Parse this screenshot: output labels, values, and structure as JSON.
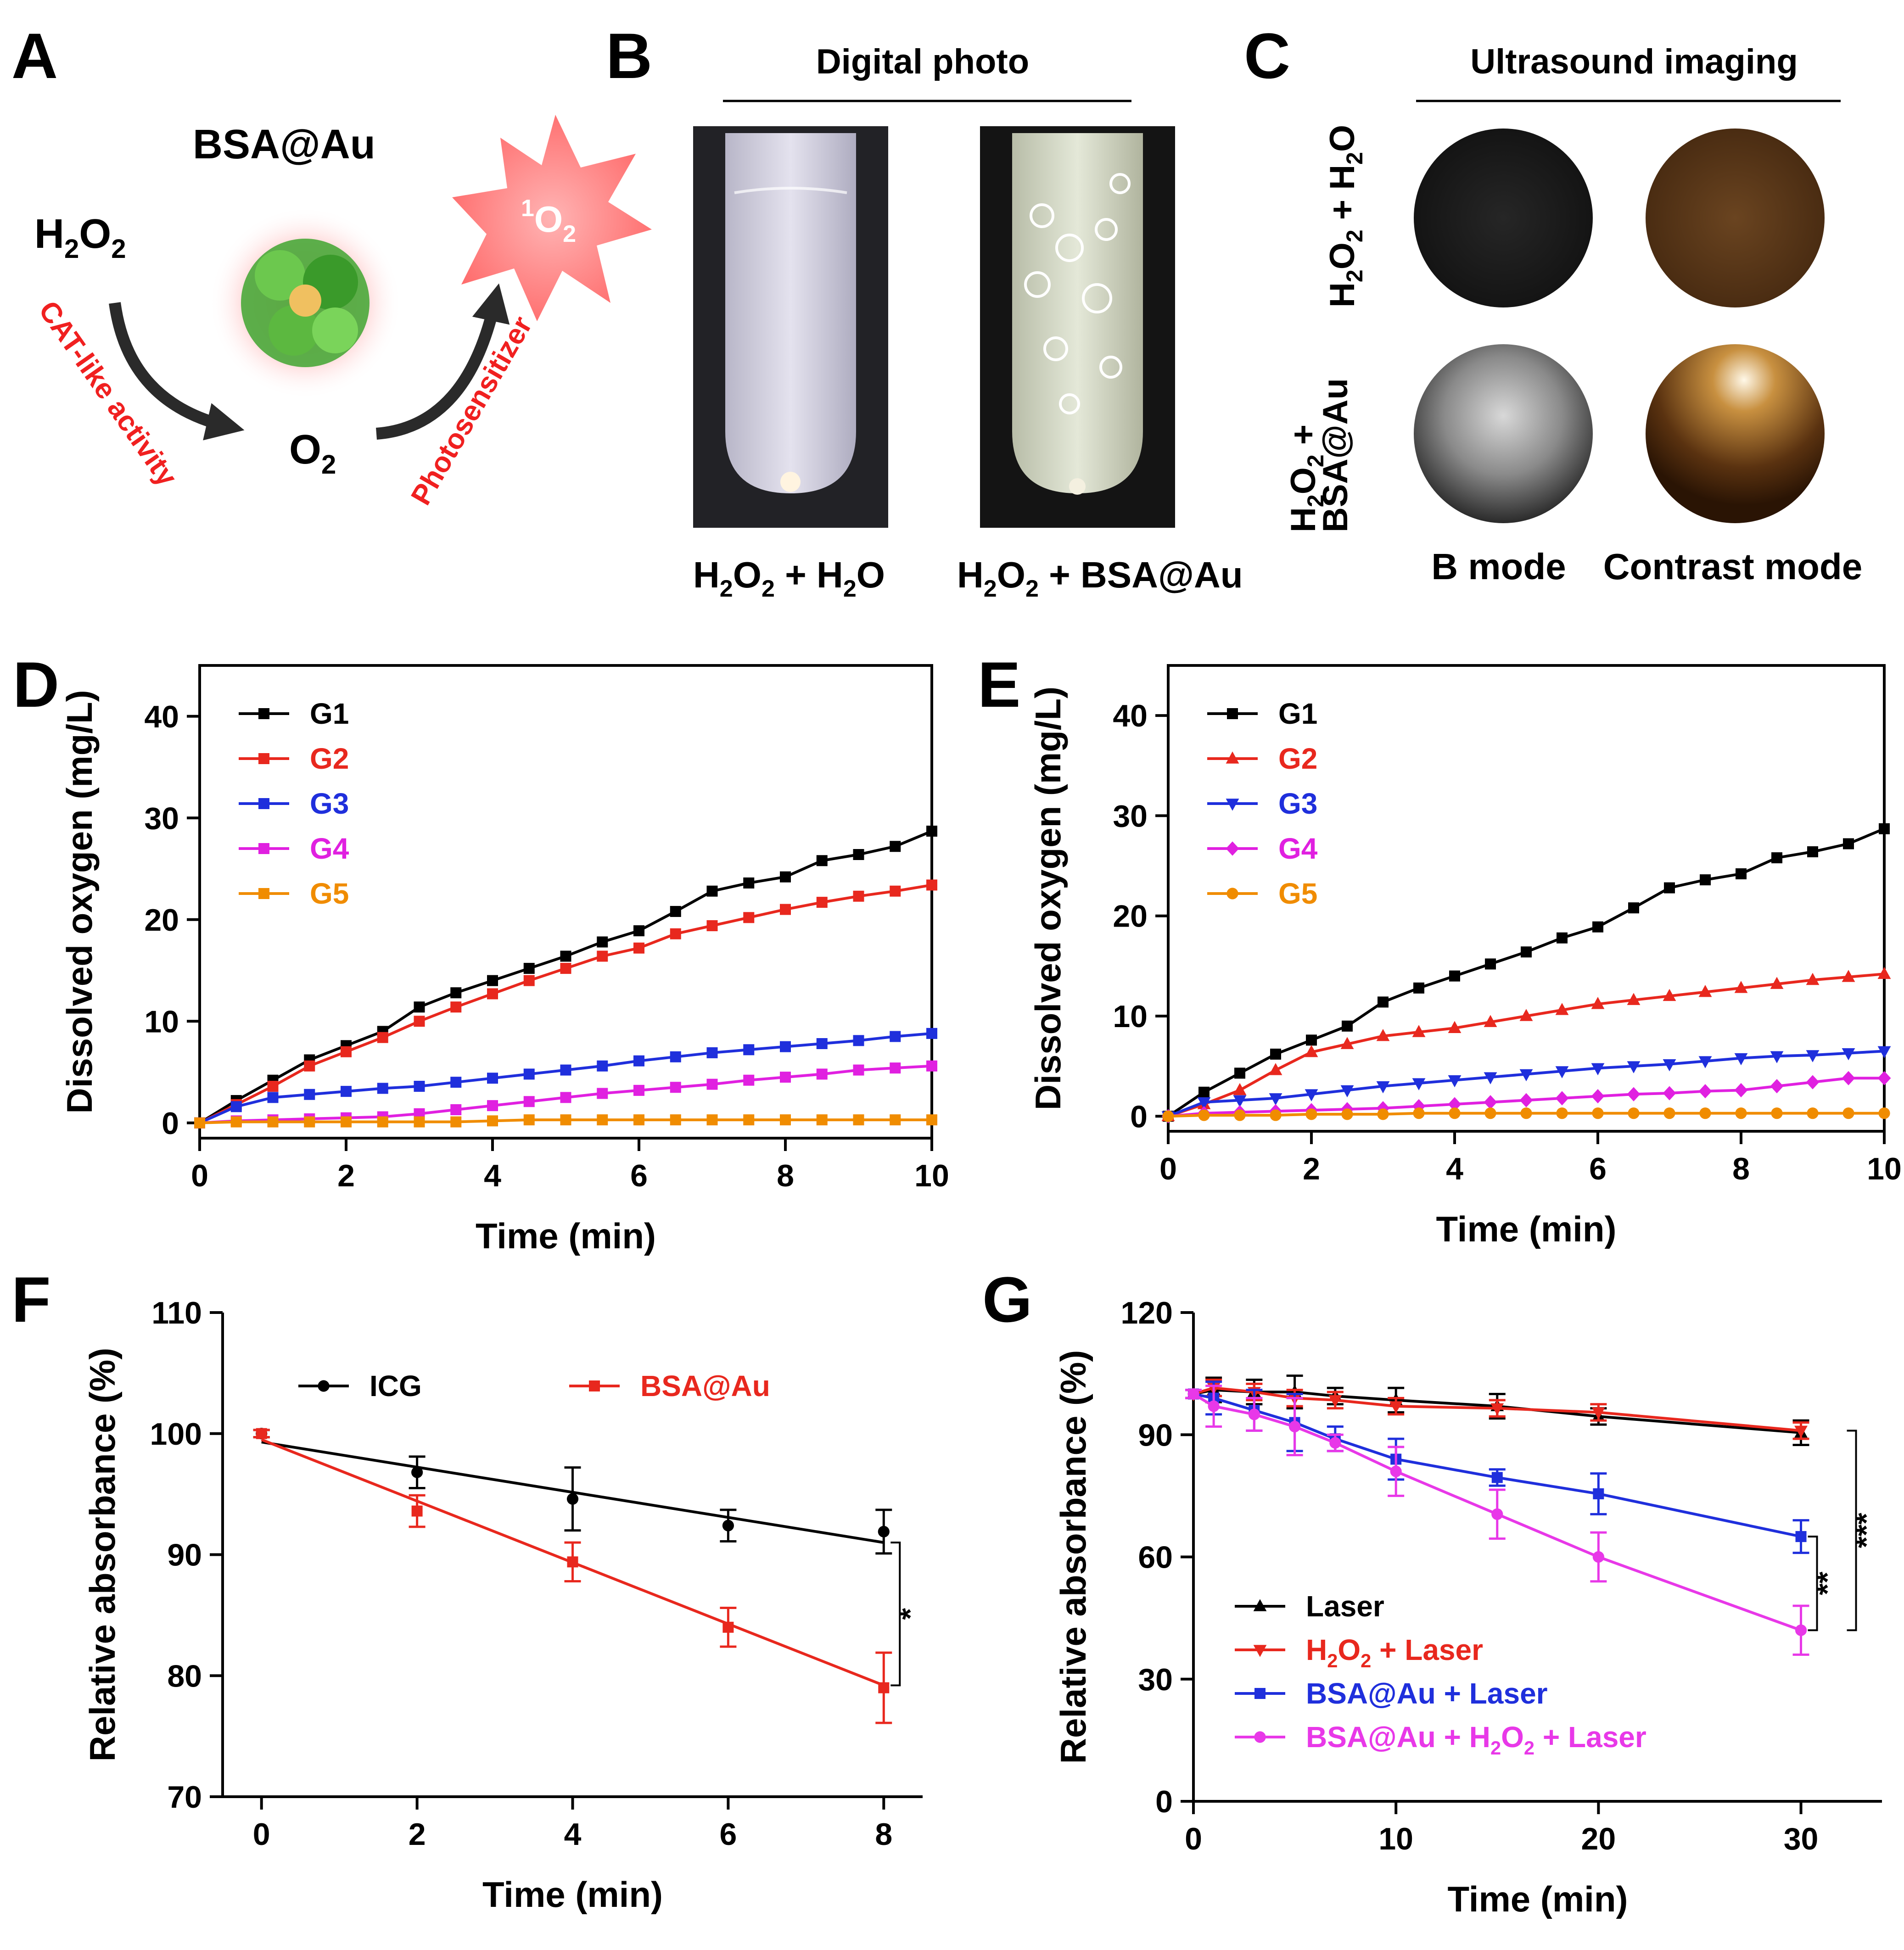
{
  "panels": {
    "A": {
      "label": "A",
      "nanozyme": "BSA@Au",
      "substrate": "H2O2",
      "product": "O2",
      "singlet": "1O2",
      "cat_label": "CAT-like activity",
      "ps_label": "Photosensitizer"
    },
    "B": {
      "label": "B",
      "title": "Digital photo",
      "captions": [
        "H2O2 + H2O",
        "H2O2 + BSA@Au"
      ]
    },
    "C": {
      "label": "C",
      "title": "Ultrasound imaging",
      "row_labels": [
        "H2O2 + H2O",
        "H2O2 + BSA@Au"
      ],
      "col_labels": [
        "B mode",
        "Contrast mode"
      ]
    }
  },
  "chart_data": [
    {
      "id": "D",
      "panel_label": "D",
      "type": "line",
      "xlabel": "Time (min)",
      "ylabel": "Dissolved oxygen (mg/L)",
      "xlim": [
        0,
        10
      ],
      "ylim": [
        -1.5,
        45
      ],
      "xticks": [
        0,
        2,
        4,
        6,
        8,
        10
      ],
      "yticks": [
        0,
        10,
        20,
        30,
        40
      ],
      "legend_position": "top-left",
      "x": [
        0,
        0.5,
        1,
        1.5,
        2,
        2.5,
        3,
        3.5,
        4,
        4.5,
        5,
        5.5,
        6,
        6.5,
        7,
        7.5,
        8,
        8.5,
        9,
        9.5,
        10
      ],
      "series": [
        {
          "name": "G1",
          "color": "#000000",
          "marker": "square",
          "values": [
            0,
            2.2,
            4.2,
            6.2,
            7.6,
            9.0,
            11.4,
            12.8,
            14.0,
            15.2,
            16.4,
            17.8,
            18.9,
            20.8,
            22.8,
            23.6,
            24.2,
            25.8,
            26.4,
            27.2,
            28.7
          ]
        },
        {
          "name": "G2",
          "color": "#e8281e",
          "marker": "square",
          "values": [
            0,
            1.8,
            3.6,
            5.6,
            7.0,
            8.4,
            10.0,
            11.4,
            12.7,
            14.0,
            15.2,
            16.4,
            17.2,
            18.6,
            19.4,
            20.2,
            21.0,
            21.7,
            22.3,
            22.8,
            23.4
          ]
        },
        {
          "name": "G3",
          "color": "#1f2fdc",
          "marker": "square",
          "values": [
            0,
            1.6,
            2.5,
            2.8,
            3.1,
            3.4,
            3.6,
            4.0,
            4.4,
            4.8,
            5.2,
            5.6,
            6.1,
            6.5,
            6.9,
            7.2,
            7.5,
            7.8,
            8.1,
            8.5,
            8.8
          ]
        },
        {
          "name": "G4",
          "color": "#e020e0",
          "marker": "square",
          "values": [
            0,
            0.2,
            0.3,
            0.4,
            0.5,
            0.6,
            0.9,
            1.3,
            1.7,
            2.1,
            2.5,
            2.9,
            3.2,
            3.5,
            3.8,
            4.2,
            4.5,
            4.8,
            5.2,
            5.4,
            5.6
          ]
        },
        {
          "name": "G5",
          "color": "#f08c00",
          "marker": "square",
          "values": [
            0,
            0.1,
            0.1,
            0.1,
            0.1,
            0.1,
            0.1,
            0.1,
            0.2,
            0.3,
            0.3,
            0.3,
            0.3,
            0.3,
            0.3,
            0.3,
            0.3,
            0.3,
            0.3,
            0.3,
            0.3
          ]
        }
      ]
    },
    {
      "id": "E",
      "panel_label": "E",
      "type": "line",
      "xlabel": "Time (min)",
      "ylabel": "Dissolved oxygen (mg/L)",
      "xlim": [
        0,
        10
      ],
      "ylim": [
        -1.5,
        45
      ],
      "xticks": [
        0,
        2,
        4,
        6,
        8,
        10
      ],
      "yticks": [
        0,
        10,
        20,
        30,
        40
      ],
      "legend_position": "top-left",
      "x": [
        0,
        0.5,
        1,
        1.5,
        2,
        2.5,
        3,
        3.5,
        4,
        4.5,
        5,
        5.5,
        6,
        6.5,
        7,
        7.5,
        8,
        8.5,
        9,
        9.5,
        10
      ],
      "series": [
        {
          "name": "G1",
          "color": "#000000",
          "marker": "square",
          "values": [
            0,
            2.4,
            4.3,
            6.2,
            7.6,
            9.0,
            11.4,
            12.8,
            14.0,
            15.2,
            16.4,
            17.8,
            18.9,
            20.8,
            22.8,
            23.6,
            24.2,
            25.8,
            26.4,
            27.2,
            28.7
          ]
        },
        {
          "name": "G2",
          "color": "#e8281e",
          "marker": "triangle",
          "values": [
            0,
            1.2,
            2.6,
            4.6,
            6.4,
            7.2,
            8.0,
            8.4,
            8.8,
            9.4,
            10.0,
            10.6,
            11.2,
            11.6,
            12.0,
            12.4,
            12.8,
            13.2,
            13.6,
            13.9,
            14.2
          ]
        },
        {
          "name": "G3",
          "color": "#1f2fdc",
          "marker": "triangle-down",
          "values": [
            0,
            1.4,
            1.6,
            1.8,
            2.2,
            2.6,
            3.0,
            3.3,
            3.6,
            3.9,
            4.2,
            4.5,
            4.8,
            5.0,
            5.2,
            5.5,
            5.8,
            6.0,
            6.1,
            6.3,
            6.5
          ]
        },
        {
          "name": "G4",
          "color": "#e020e0",
          "marker": "diamond",
          "values": [
            0,
            0.3,
            0.4,
            0.5,
            0.6,
            0.7,
            0.8,
            1.0,
            1.2,
            1.4,
            1.6,
            1.8,
            2.0,
            2.2,
            2.3,
            2.5,
            2.6,
            3.0,
            3.4,
            3.8,
            3.8
          ]
        },
        {
          "name": "G5",
          "color": "#f08c00",
          "marker": "circle",
          "values": [
            0,
            0.1,
            0.1,
            0.1,
            0.2,
            0.2,
            0.2,
            0.3,
            0.3,
            0.3,
            0.3,
            0.3,
            0.3,
            0.3,
            0.3,
            0.3,
            0.3,
            0.3,
            0.3,
            0.3,
            0.3
          ]
        }
      ]
    },
    {
      "id": "F",
      "panel_label": "F",
      "type": "line",
      "xlabel": "Time (min)",
      "ylabel": "Relative absorbance (%)",
      "xlim": [
        -0.5,
        8.5
      ],
      "ylim": [
        70,
        110
      ],
      "xticks": [
        0,
        2,
        4,
        6,
        8
      ],
      "yticks": [
        70,
        80,
        90,
        100,
        110
      ],
      "legend_position": "top",
      "x": [
        0,
        2,
        4,
        6,
        8
      ],
      "series": [
        {
          "name": "ICG",
          "color": "#000000",
          "marker": "circle",
          "values": [
            100,
            96.8,
            94.6,
            92.4,
            91.9
          ],
          "errors": [
            0.3,
            1.3,
            2.6,
            1.3,
            1.8
          ],
          "fit": [
            99.3,
            91.0
          ]
        },
        {
          "name": "BSA@Au",
          "color": "#e8281e",
          "marker": "square",
          "values": [
            100,
            93.6,
            89.4,
            84.0,
            79.0
          ],
          "errors": [
            0.3,
            1.3,
            1.6,
            1.6,
            2.9
          ],
          "fit": [
            99.5,
            79.2
          ]
        }
      ],
      "annotations": [
        {
          "text": "*",
          "x": 8,
          "y1": 91.0,
          "y2": 79.2
        }
      ]
    },
    {
      "id": "G",
      "panel_label": "G",
      "type": "line",
      "xlabel": "Time (min)",
      "ylabel": "Relative absorbance (%)",
      "xlim": [
        0,
        34
      ],
      "ylim": [
        0,
        120
      ],
      "xticks": [
        0,
        10,
        20,
        30
      ],
      "yticks": [
        0,
        30,
        60,
        90,
        120
      ],
      "legend_position": "bottom-left",
      "x": [
        0,
        1,
        3,
        5,
        7,
        10,
        15,
        20,
        30
      ],
      "series": [
        {
          "name": "Laser",
          "color": "#000000",
          "marker": "triangle",
          "values": [
            100,
            101,
            100.5,
            100.5,
            99.5,
            98.5,
            97,
            94.5,
            90.5
          ],
          "errors": [
            1,
            3,
            3,
            4,
            2,
            3,
            3,
            2,
            3
          ]
        },
        {
          "name": "H2O2 + Laser",
          "color": "#e8281e",
          "marker": "triangle-down",
          "values": [
            100,
            101.5,
            100.5,
            99,
            98.5,
            97,
            96.5,
            95.5,
            91
          ],
          "errors": [
            1,
            2,
            2,
            2,
            2,
            2,
            2,
            2,
            2
          ]
        },
        {
          "name": "BSA@Au + Laser",
          "color": "#1f2fdc",
          "marker": "square",
          "values": [
            100,
            99,
            96,
            93,
            89,
            84,
            79.5,
            75.5,
            65
          ],
          "errors": [
            1,
            4,
            5,
            7,
            3,
            5,
            2,
            5,
            4
          ]
        },
        {
          "name": "BSA@Au + H2O2 + Laser",
          "color": "#e838e8",
          "marker": "circle",
          "values": [
            100,
            97,
            95,
            92,
            88,
            81,
            70.5,
            60,
            42
          ],
          "errors": [
            1,
            5,
            4,
            7,
            2,
            6,
            6,
            6,
            6
          ]
        }
      ],
      "annotations": [
        {
          "text": "**",
          "x": 30,
          "y1": 65,
          "y2": 42
        },
        {
          "text": "***",
          "x": 30,
          "y1": 91,
          "y2": 42
        }
      ]
    }
  ]
}
